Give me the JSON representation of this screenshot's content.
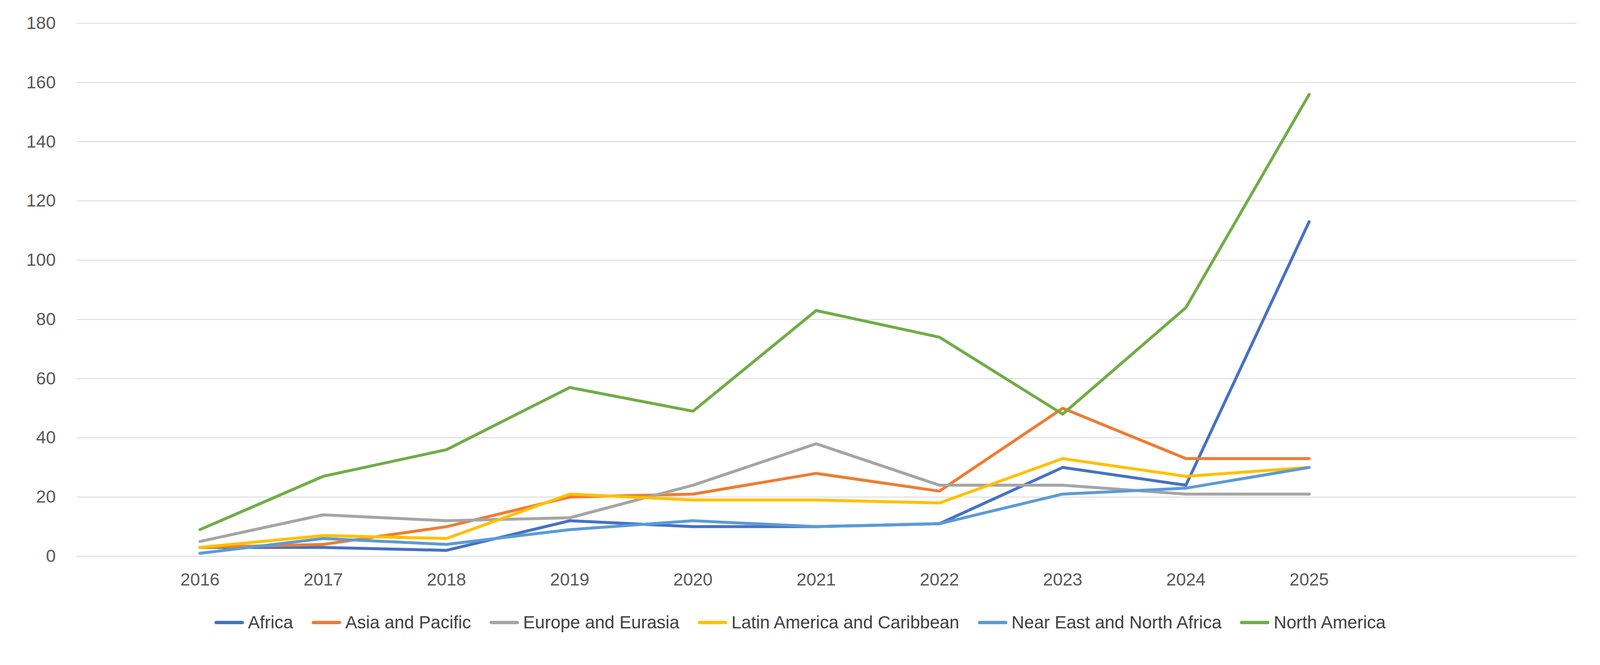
{
  "chart_data": {
    "type": "line",
    "categories": [
      "2016",
      "2017",
      "2018",
      "2019",
      "2020",
      "2021",
      "2022",
      "2023",
      "2024",
      "2025"
    ],
    "series": [
      {
        "name": "Africa",
        "color": "#4472c4",
        "values": [
          3,
          3,
          2,
          12,
          10,
          10,
          11,
          30,
          24,
          113
        ]
      },
      {
        "name": "Asia and Pacific",
        "color": "#ed7d31",
        "values": [
          3,
          4,
          10,
          20,
          21,
          28,
          22,
          50,
          33,
          33
        ]
      },
      {
        "name": "Europe and Eurasia",
        "color": "#a5a5a5",
        "values": [
          5,
          14,
          12,
          13,
          24,
          38,
          24,
          24,
          21,
          21
        ]
      },
      {
        "name": "Latin America and Caribbean",
        "color": "#ffc000",
        "values": [
          3,
          7,
          6,
          21,
          19,
          19,
          18,
          33,
          27,
          30
        ]
      },
      {
        "name": "Near East and North Africa",
        "color": "#5b9bd5",
        "values": [
          1,
          6,
          4,
          9,
          12,
          10,
          11,
          21,
          23,
          30
        ]
      },
      {
        "name": "North America",
        "color": "#70ad47",
        "values": [
          9,
          27,
          36,
          57,
          49,
          83,
          74,
          48,
          84,
          156
        ]
      }
    ],
    "ylim": [
      0,
      180
    ],
    "yticks": [
      0,
      20,
      40,
      60,
      80,
      100,
      120,
      140,
      160,
      180
    ],
    "grid": true,
    "legend": "bottom"
  }
}
